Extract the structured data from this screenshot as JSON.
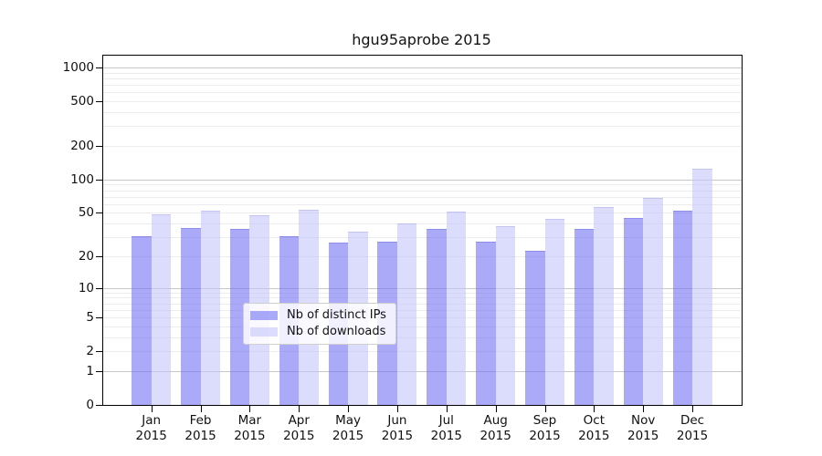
{
  "figure": {
    "title": "hgu95aprobe 2015"
  },
  "legend": {
    "items": [
      {
        "key": "ips",
        "label": "Nb of distinct IPs"
      },
      {
        "key": "downloads",
        "label": "Nb of downloads"
      }
    ]
  },
  "colors": {
    "ips_bar": "rgba(114,114,243,0.6)",
    "ips_edge": "rgba(80,80,210,0.3)",
    "downloads_bar": "rgba(196,196,250,0.6)",
    "downloads_edge": "rgba(140,140,225,0.3)",
    "grid_major": "#c6c6c6",
    "grid_minor": "#ececec",
    "spine": "#000000",
    "text": "#111111"
  },
  "chart_data": {
    "type": "bar",
    "title": "hgu95aprobe 2015",
    "x": [
      {
        "month": "Jan",
        "year": "2015"
      },
      {
        "month": "Feb",
        "year": "2015"
      },
      {
        "month": "Mar",
        "year": "2015"
      },
      {
        "month": "Apr",
        "year": "2015"
      },
      {
        "month": "May",
        "year": "2015"
      },
      {
        "month": "Jun",
        "year": "2015"
      },
      {
        "month": "Jul",
        "year": "2015"
      },
      {
        "month": "Aug",
        "year": "2015"
      },
      {
        "month": "Sep",
        "year": "2015"
      },
      {
        "month": "Oct",
        "year": "2015"
      },
      {
        "month": "Nov",
        "year": "2015"
      },
      {
        "month": "Dec",
        "year": "2015"
      }
    ],
    "series": [
      {
        "name": "Nb of distinct IPs",
        "key": "ips",
        "values": [
          30,
          36,
          35,
          30,
          26,
          27,
          35,
          27,
          22,
          35,
          44,
          51
        ]
      },
      {
        "name": "Nb of downloads",
        "key": "downloads",
        "values": [
          48,
          51,
          47,
          52,
          33,
          39,
          50,
          37,
          43,
          55,
          67,
          122
        ]
      }
    ],
    "y_scale": "log10(1+y)",
    "y_ticks": [
      0,
      1,
      2,
      5,
      10,
      20,
      50,
      100,
      200,
      500,
      1000
    ],
    "ylim": [
      0,
      1300
    ],
    "grid_major": [
      1,
      10,
      100,
      1000
    ],
    "grid_minor": [
      2,
      3,
      4,
      5,
      6,
      7,
      8,
      9,
      20,
      30,
      40,
      50,
      60,
      70,
      80,
      90,
      200,
      300,
      400,
      500,
      600,
      700,
      800,
      900
    ],
    "legend_position": "lower center",
    "xlabel": "",
    "ylabel": ""
  }
}
